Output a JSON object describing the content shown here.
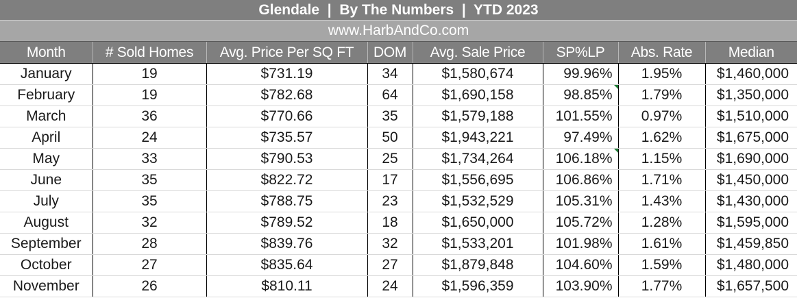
{
  "title": "Glendale  |  By The Numbers  |  YTD 2023",
  "website": "www.HarbAndCo.com",
  "columns": [
    "Month",
    "# Sold Homes",
    "Avg. Price Per SQ FT",
    "DOM",
    "Avg. Sale Price",
    "SP%LP",
    "Abs. Rate",
    "Median"
  ],
  "rows": [
    {
      "month": "January",
      "sold": "19",
      "ppsf": "$731.19",
      "dom": "34",
      "avg_price": "$1,580,674",
      "splp": "99.96%",
      "abs": "1.95%",
      "median": "$1,460,000"
    },
    {
      "month": "February",
      "sold": "19",
      "ppsf": "$782.68",
      "dom": "64",
      "avg_price": "$1,690,158",
      "splp": "98.85%",
      "abs": "1.79%",
      "median": "$1,350,000"
    },
    {
      "month": "March",
      "sold": "36",
      "ppsf": "$770.66",
      "dom": "35",
      "avg_price": "$1,579,188",
      "splp": "101.55%",
      "abs": "0.97%",
      "median": "$1,510,000"
    },
    {
      "month": "April",
      "sold": "24",
      "ppsf": "$735.57",
      "dom": "50",
      "avg_price": "$1,943,221",
      "splp": "97.49%",
      "abs": "1.62%",
      "median": "$1,675,000"
    },
    {
      "month": "May",
      "sold": "33",
      "ppsf": "$790.53",
      "dom": "25",
      "avg_price": "$1,734,264",
      "splp": "106.18%",
      "abs": "1.15%",
      "median": "$1,690,000"
    },
    {
      "month": "June",
      "sold": "35",
      "ppsf": "$822.72",
      "dom": "17",
      "avg_price": "$1,556,695",
      "splp": "106.86%",
      "abs": "1.71%",
      "median": "$1,450,000"
    },
    {
      "month": "July",
      "sold": "35",
      "ppsf": "$788.75",
      "dom": "23",
      "avg_price": "$1,532,529",
      "splp": "105.31%",
      "abs": "1.43%",
      "median": "$1,430,000"
    },
    {
      "month": "August",
      "sold": "32",
      "ppsf": "$789.52",
      "dom": "18",
      "avg_price": "$1,650,000",
      "splp": "105.72%",
      "abs": "1.28%",
      "median": "$1,595,000"
    },
    {
      "month": "September",
      "sold": "28",
      "ppsf": "$839.76",
      "dom": "32",
      "avg_price": "$1,533,201",
      "splp": "101.98%",
      "abs": "1.61%",
      "median": "$1,459,850"
    },
    {
      "month": "October",
      "sold": "27",
      "ppsf": "$835.64",
      "dom": "27",
      "avg_price": "$1,879,848",
      "splp": "104.60%",
      "abs": "1.59%",
      "median": "$1,480,000"
    },
    {
      "month": "November",
      "sold": "26",
      "ppsf": "$810.11",
      "dom": "24",
      "avg_price": "$1,596,359",
      "splp": "103.90%",
      "abs": "1.77%",
      "median": "$1,657,500"
    }
  ],
  "colors": {
    "title_bg": "#7f7f7f",
    "url_bg": "#a6a6a6",
    "header_bg": "#7f7f7f",
    "header_text": "#ffffff",
    "comment_marker": "#1e7b34"
  }
}
